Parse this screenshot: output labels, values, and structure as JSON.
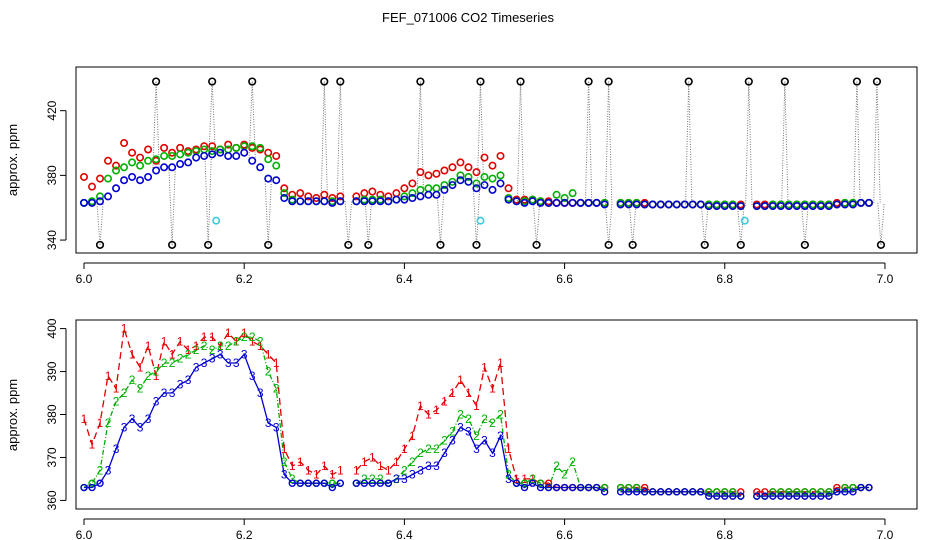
{
  "title": "FEF_071006  CO2 Timeseries",
  "colors": {
    "ch1": "#e00000",
    "ch2": "#00b000",
    "ch3": "#0000d0",
    "raw": "#000000",
    "flag": "#40c8e0",
    "frame": "#000000"
  },
  "chart_data": [
    {
      "type": "scatter",
      "panel": "top",
      "title": "",
      "xlabel": "",
      "ylabel": "approx. ppm",
      "xlim": [
        5.99,
        7.04
      ],
      "ylim": [
        332,
        447
      ],
      "x_ticks": [
        6.0,
        6.2,
        6.4,
        6.6,
        6.8,
        7.0
      ],
      "x_tick_labels": [
        "6.0",
        "6.2",
        "6.4",
        "6.6",
        "6.8",
        "7.0"
      ],
      "y_ticks": [
        340,
        380,
        420
      ],
      "y_tick_labels": [
        "340",
        "380",
        "420"
      ],
      "raw_channel_extremes": {
        "high_value": 438,
        "low_value": 337,
        "high_x": [
          6.09,
          6.16,
          6.21,
          6.3,
          6.32,
          6.42,
          6.495,
          6.545,
          6.63,
          6.655,
          6.755,
          6.83,
          6.875,
          6.965,
          6.99
        ],
        "low_x": [
          6.02,
          6.11,
          6.155,
          6.23,
          6.33,
          6.355,
          6.445,
          6.49,
          6.565,
          6.655,
          6.685,
          6.775,
          6.82,
          6.9,
          6.995
        ]
      },
      "flagged_points": [
        [
          6.165,
          352
        ],
        [
          6.495,
          352
        ],
        [
          6.825,
          352
        ]
      ],
      "series_from_panel": "bottom"
    },
    {
      "type": "line",
      "panel": "bottom",
      "title": "",
      "xlabel": "",
      "ylabel": "approx. ppm",
      "xlim": [
        5.99,
        7.04
      ],
      "ylim": [
        358,
        402
      ],
      "x_ticks": [
        6.0,
        6.2,
        6.4,
        6.6,
        6.8,
        7.0
      ],
      "x_tick_labels": [
        "6.0",
        "6.2",
        "6.4",
        "6.6",
        "6.8",
        "7.0"
      ],
      "y_ticks": [
        360,
        370,
        380,
        390,
        400
      ],
      "y_tick_labels": [
        "360",
        "370",
        "380",
        "390",
        "400"
      ],
      "gaps": [
        [
          6.327,
          6.332
        ],
        [
          6.658,
          6.667
        ],
        [
          6.826,
          6.834
        ]
      ],
      "x": [
        6.0,
        6.01,
        6.02,
        6.03,
        6.04,
        6.05,
        6.06,
        6.07,
        6.08,
        6.09,
        6.1,
        6.11,
        6.12,
        6.13,
        6.14,
        6.15,
        6.16,
        6.17,
        6.18,
        6.19,
        6.2,
        6.21,
        6.22,
        6.23,
        6.24,
        6.25,
        6.26,
        6.27,
        6.28,
        6.29,
        6.3,
        6.31,
        6.32,
        6.34,
        6.35,
        6.36,
        6.37,
        6.38,
        6.39,
        6.4,
        6.41,
        6.42,
        6.43,
        6.44,
        6.45,
        6.46,
        6.47,
        6.48,
        6.49,
        6.5,
        6.51,
        6.52,
        6.53,
        6.54,
        6.55,
        6.56,
        6.57,
        6.58,
        6.59,
        6.6,
        6.61,
        6.62,
        6.63,
        6.64,
        6.65,
        6.67,
        6.68,
        6.69,
        6.7,
        6.71,
        6.72,
        6.73,
        6.74,
        6.75,
        6.76,
        6.77,
        6.78,
        6.79,
        6.8,
        6.81,
        6.82,
        6.84,
        6.85,
        6.86,
        6.87,
        6.88,
        6.89,
        6.9,
        6.91,
        6.92,
        6.93,
        6.94,
        6.95,
        6.96,
        6.97,
        6.98
      ],
      "series": [
        {
          "name": "1",
          "values": [
            379,
            373,
            378,
            389,
            386,
            400,
            394,
            391,
            396,
            389,
            397,
            394,
            397,
            395,
            396,
            398,
            398,
            396,
            399,
            397,
            399,
            397,
            396,
            394,
            392,
            372,
            368,
            369,
            367,
            366,
            368,
            366,
            367,
            367,
            369,
            370,
            368,
            367,
            369,
            372,
            375,
            382,
            380,
            381,
            383,
            385,
            388,
            385,
            382,
            391,
            386,
            392,
            372,
            365,
            365,
            365,
            364,
            364,
            363,
            363,
            363,
            363,
            363,
            363,
            363,
            363,
            363,
            363,
            363,
            362,
            362,
            362,
            362,
            362,
            362,
            362,
            362,
            362,
            362,
            362,
            362,
            362,
            362,
            362,
            362,
            362,
            362,
            362,
            362,
            362,
            362,
            363,
            363,
            363,
            363,
            363
          ]
        },
        {
          "name": "2",
          "values": [
            363,
            364,
            367,
            378,
            383,
            385,
            388,
            386,
            389,
            390,
            392,
            392,
            393,
            394,
            395,
            396,
            395,
            396,
            396,
            397,
            398,
            398,
            397,
            390,
            386,
            369,
            365,
            364,
            364,
            364,
            364,
            364,
            364,
            364,
            365,
            365,
            365,
            364,
            365,
            367,
            369,
            371,
            372,
            372,
            374,
            376,
            380,
            379,
            375,
            379,
            378,
            380,
            366,
            364,
            364,
            365,
            364,
            363,
            368,
            366,
            369,
            363,
            363,
            363,
            363,
            363,
            363,
            363,
            362,
            362,
            362,
            362,
            362,
            362,
            362,
            362,
            362,
            362,
            362,
            362,
            361,
            361,
            361,
            362,
            362,
            362,
            362,
            362,
            362,
            362,
            362,
            362,
            363,
            363,
            363,
            363
          ]
        },
        {
          "name": "3",
          "values": [
            363,
            363,
            364,
            367,
            372,
            377,
            379,
            377,
            379,
            383,
            385,
            385,
            387,
            388,
            391,
            392,
            393,
            394,
            392,
            392,
            394,
            389,
            385,
            378,
            377,
            366,
            364,
            364,
            364,
            364,
            364,
            363,
            364,
            364,
            364,
            364,
            364,
            364,
            365,
            365,
            366,
            367,
            368,
            368,
            371,
            374,
            377,
            376,
            372,
            374,
            371,
            375,
            365,
            364,
            363,
            364,
            363,
            363,
            363,
            363,
            363,
            363,
            363,
            363,
            362,
            362,
            362,
            362,
            362,
            362,
            362,
            362,
            362,
            362,
            362,
            362,
            361,
            361,
            361,
            361,
            361,
            361,
            361,
            361,
            361,
            361,
            361,
            361,
            361,
            361,
            361,
            362,
            362,
            362,
            363,
            363
          ]
        }
      ]
    }
  ]
}
